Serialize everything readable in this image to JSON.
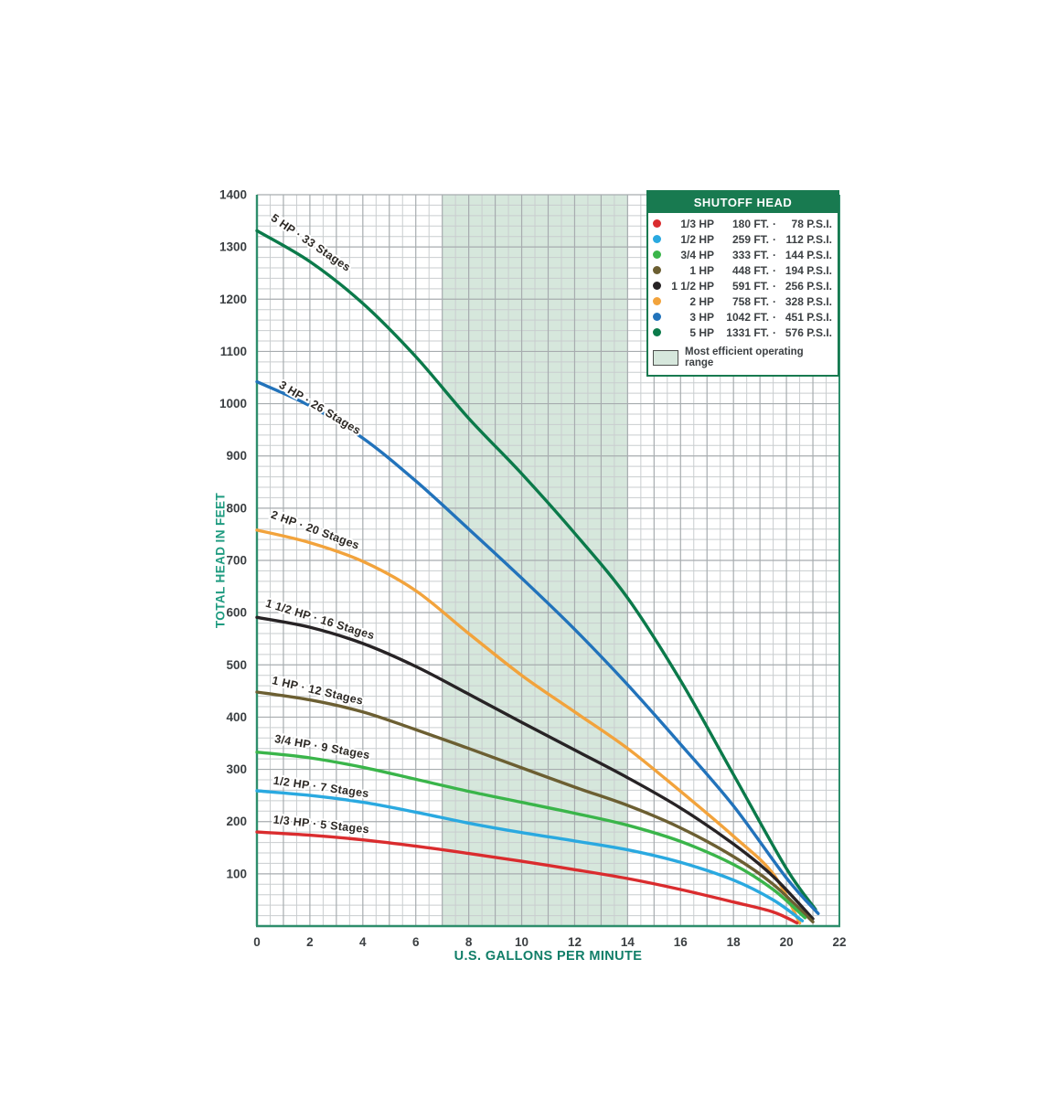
{
  "colors": {
    "band": "#d6e7dc",
    "grid_minor": "#c9cdcf",
    "grid_major": "#a7acaf",
    "plot_border": "#2e8e6c",
    "tick_text": "#3c4043",
    "x_title": "#117e68",
    "y_title": "#1f9b80",
    "legend_header_bg": "#187a50"
  },
  "chart_data": {
    "type": "line",
    "title": "",
    "xlabel": "U.S. GALLONS PER MINUTE",
    "ylabel": "TOTAL HEAD IN FEET",
    "xlim": [
      0,
      22
    ],
    "ylim": [
      0,
      1400
    ],
    "x_ticks": [
      0,
      2,
      4,
      6,
      8,
      10,
      12,
      14,
      16,
      18,
      20,
      22
    ],
    "y_ticks": [
      100,
      200,
      300,
      400,
      500,
      600,
      700,
      800,
      900,
      1000,
      1100,
      1200,
      1300,
      1400
    ],
    "x_minor_step": 0.5,
    "x_major_step": 1,
    "y_minor_step": 20,
    "y_major_step": 100,
    "grid": true,
    "efficient_range_gpm": [
      7,
      14
    ],
    "series": [
      {
        "id": "5hp",
        "name": "5 HP · 33 Stages",
        "hp": "5 HP",
        "stages": 33,
        "color": "#0b7a4a",
        "label": {
          "gpm": 0.5,
          "head": 1352,
          "angle": 34
        },
        "points": [
          [
            0,
            1331
          ],
          [
            2,
            1272
          ],
          [
            4,
            1192
          ],
          [
            6,
            1090
          ],
          [
            8,
            972
          ],
          [
            10,
            866
          ],
          [
            12,
            752
          ],
          [
            14,
            628
          ],
          [
            16,
            470
          ],
          [
            18,
            290
          ],
          [
            20,
            110
          ],
          [
            21.1,
            32
          ]
        ]
      },
      {
        "id": "3hp",
        "name": "3 HP · 26 Stages",
        "hp": "3 HP",
        "stages": 26,
        "color": "#2273bb",
        "label": {
          "gpm": 0.8,
          "head": 1032,
          "angle": 31
        },
        "points": [
          [
            0,
            1042
          ],
          [
            2,
            996
          ],
          [
            4,
            934
          ],
          [
            6,
            852
          ],
          [
            8,
            760
          ],
          [
            10,
            666
          ],
          [
            12,
            568
          ],
          [
            14,
            462
          ],
          [
            16,
            348
          ],
          [
            18,
            230
          ],
          [
            20,
            92
          ],
          [
            21.2,
            24
          ]
        ]
      },
      {
        "id": "2hp",
        "name": "2 HP · 20 Stages",
        "hp": "2 HP",
        "stages": 20,
        "color": "#f2a33c",
        "label": {
          "gpm": 0.5,
          "head": 782,
          "angle": 20
        },
        "points": [
          [
            0,
            758
          ],
          [
            2,
            734
          ],
          [
            4,
            698
          ],
          [
            6,
            642
          ],
          [
            8,
            560
          ],
          [
            10,
            480
          ],
          [
            12,
            410
          ],
          [
            14,
            340
          ],
          [
            16,
            258
          ],
          [
            18,
            172
          ],
          [
            19.5,
            100
          ],
          [
            20.5,
            6
          ]
        ]
      },
      {
        "id": "1-5hp",
        "name": "1 1/2 HP · 16 Stages",
        "hp": "1 1/2 HP",
        "stages": 16,
        "color": "#272325",
        "label": {
          "gpm": 0.3,
          "head": 612,
          "angle": 17
        },
        "points": [
          [
            0,
            591
          ],
          [
            2,
            572
          ],
          [
            4,
            541
          ],
          [
            6,
            497
          ],
          [
            8,
            444
          ],
          [
            10,
            390
          ],
          [
            12,
            337
          ],
          [
            14,
            284
          ],
          [
            16,
            226
          ],
          [
            18,
            157
          ],
          [
            19.5,
            95
          ],
          [
            21,
            14
          ]
        ]
      },
      {
        "id": "1hp",
        "name": "1 HP · 12 Stages",
        "hp": "1 HP",
        "stages": 12,
        "color": "#6c5f32",
        "label": {
          "gpm": 0.55,
          "head": 464,
          "angle": 13
        },
        "points": [
          [
            0,
            448
          ],
          [
            2,
            433
          ],
          [
            4,
            410
          ],
          [
            6,
            376
          ],
          [
            8,
            340
          ],
          [
            10,
            303
          ],
          [
            12,
            266
          ],
          [
            14,
            231
          ],
          [
            16,
            188
          ],
          [
            18,
            133
          ],
          [
            19.5,
            80
          ],
          [
            21,
            8
          ]
        ]
      },
      {
        "id": "0-75hp",
        "name": "3/4 HP · 9 Stages",
        "hp": "3/4 HP",
        "stages": 9,
        "color": "#3ab54a",
        "label": {
          "gpm": 0.65,
          "head": 352,
          "angle": 10
        },
        "points": [
          [
            0,
            333
          ],
          [
            2,
            322
          ],
          [
            4,
            304
          ],
          [
            6,
            281
          ],
          [
            8,
            258
          ],
          [
            10,
            237
          ],
          [
            12,
            216
          ],
          [
            14,
            193
          ],
          [
            16,
            162
          ],
          [
            18,
            118
          ],
          [
            19.5,
            70
          ],
          [
            20.7,
            16
          ]
        ]
      },
      {
        "id": "0-5hp",
        "name": "1/2 HP · 7 Stages",
        "hp": "1/2 HP",
        "stages": 7,
        "color": "#2aa9e0",
        "label": {
          "gpm": 0.6,
          "head": 272,
          "angle": 8
        },
        "points": [
          [
            0,
            259
          ],
          [
            2,
            250
          ],
          [
            4,
            237
          ],
          [
            6,
            218
          ],
          [
            8,
            197
          ],
          [
            10,
            179
          ],
          [
            12,
            163
          ],
          [
            14,
            146
          ],
          [
            16,
            122
          ],
          [
            18,
            88
          ],
          [
            19.5,
            50
          ],
          [
            20.6,
            10
          ]
        ]
      },
      {
        "id": "0-33hp",
        "name": "1/3 HP · 5 Stages",
        "hp": "1/3 HP",
        "stages": 5,
        "color": "#da2c2e",
        "label": {
          "gpm": 0.6,
          "head": 197,
          "angle": 6
        },
        "points": [
          [
            0,
            180
          ],
          [
            2,
            174
          ],
          [
            4,
            165
          ],
          [
            6,
            153
          ],
          [
            8,
            139
          ],
          [
            10,
            124
          ],
          [
            12,
            108
          ],
          [
            14,
            91
          ],
          [
            16,
            70
          ],
          [
            18,
            46
          ],
          [
            19.5,
            27
          ],
          [
            20.4,
            6
          ]
        ]
      }
    ]
  },
  "legend": {
    "title": "SHUTOFF HEAD",
    "sep": "·",
    "rows": [
      {
        "color": "#da2c2e",
        "hp": "1/3 HP",
        "ft": "180 FT.",
        "psi": "78 P.S.I."
      },
      {
        "color": "#2aa9e0",
        "hp": "1/2 HP",
        "ft": "259 FT.",
        "psi": "112 P.S.I."
      },
      {
        "color": "#3ab54a",
        "hp": "3/4 HP",
        "ft": "333 FT.",
        "psi": "144 P.S.I."
      },
      {
        "color": "#6c5f32",
        "hp": "1 HP",
        "ft": "448 FT.",
        "psi": "194 P.S.I."
      },
      {
        "color": "#272325",
        "hp": "1 1/2 HP",
        "ft": "591 FT.",
        "psi": "256 P.S.I."
      },
      {
        "color": "#f2a33c",
        "hp": "2 HP",
        "ft": "758 FT.",
        "psi": "328 P.S.I."
      },
      {
        "color": "#2273bb",
        "hp": "3 HP",
        "ft": "1042 FT.",
        "psi": "451 P.S.I."
      },
      {
        "color": "#0b7a4a",
        "hp": "5 HP",
        "ft": "1331 FT.",
        "psi": "576 P.S.I."
      }
    ],
    "note": "Most efficient operating range"
  }
}
